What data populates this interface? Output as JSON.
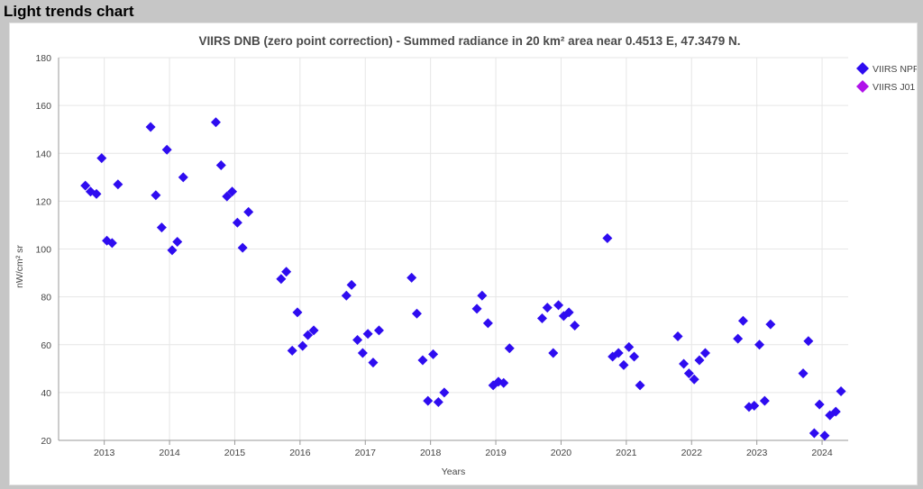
{
  "window": {
    "title": "Light trends chart"
  },
  "colors": {
    "npp": "#2e0cf0",
    "j01": "#b012ea",
    "grid": "#e6e6e6",
    "axis": "#999999"
  },
  "chart_data": {
    "type": "scatter",
    "title": "VIIRS DNB (zero point correction) - Summed radiance in 20 km² area near 0.4513 E, 47.3479 N.",
    "xlabel": "Years",
    "ylabel": "nW/cm² sr",
    "ylim": [
      20,
      180
    ],
    "yticks": [
      20,
      40,
      60,
      80,
      100,
      120,
      140,
      160,
      180
    ],
    "xlim": [
      2012.3,
      2024.4
    ],
    "xticks": [
      "2013",
      "2014",
      "2015",
      "2016",
      "2017",
      "2018",
      "2019",
      "2020",
      "2021",
      "2022",
      "2023",
      "2024"
    ],
    "grid": true,
    "legend_position": "top-right",
    "series": [
      {
        "name": "VIIRS NPP",
        "color": "#2e0cf0",
        "marker": "diamond",
        "points": [
          {
            "x": 2012.71,
            "y": 126.5
          },
          {
            "x": 2012.79,
            "y": 124
          },
          {
            "x": 2012.88,
            "y": 123
          },
          {
            "x": 2012.96,
            "y": 138
          },
          {
            "x": 2013.04,
            "y": 103.5
          },
          {
            "x": 2013.12,
            "y": 102.5
          },
          {
            "x": 2013.21,
            "y": 127
          },
          {
            "x": 2013.71,
            "y": 151
          },
          {
            "x": 2013.79,
            "y": 122.5
          },
          {
            "x": 2013.88,
            "y": 109
          },
          {
            "x": 2013.96,
            "y": 141.5
          },
          {
            "x": 2014.04,
            "y": 99.5
          },
          {
            "x": 2014.12,
            "y": 103
          },
          {
            "x": 2014.21,
            "y": 130
          },
          {
            "x": 2014.71,
            "y": 153
          },
          {
            "x": 2014.79,
            "y": 135
          },
          {
            "x": 2014.88,
            "y": 122
          },
          {
            "x": 2014.96,
            "y": 124
          },
          {
            "x": 2015.04,
            "y": 111
          },
          {
            "x": 2015.12,
            "y": 100.5
          },
          {
            "x": 2015.21,
            "y": 115.5
          },
          {
            "x": 2015.71,
            "y": 87.5
          },
          {
            "x": 2015.79,
            "y": 90.5
          },
          {
            "x": 2015.88,
            "y": 57.5
          },
          {
            "x": 2015.96,
            "y": 73.5
          },
          {
            "x": 2016.04,
            "y": 59.5
          },
          {
            "x": 2016.12,
            "y": 64
          },
          {
            "x": 2016.21,
            "y": 66
          },
          {
            "x": 2016.71,
            "y": 80.5
          },
          {
            "x": 2016.79,
            "y": 85
          },
          {
            "x": 2016.88,
            "y": 62
          },
          {
            "x": 2016.96,
            "y": 56.5
          },
          {
            "x": 2017.04,
            "y": 64.5
          },
          {
            "x": 2017.12,
            "y": 52.5
          },
          {
            "x": 2017.21,
            "y": 66
          },
          {
            "x": 2017.71,
            "y": 88
          },
          {
            "x": 2017.79,
            "y": 73
          },
          {
            "x": 2017.88,
            "y": 53.5
          },
          {
            "x": 2017.96,
            "y": 36.5
          },
          {
            "x": 2018.04,
            "y": 56
          },
          {
            "x": 2018.12,
            "y": 36
          },
          {
            "x": 2018.21,
            "y": 40
          },
          {
            "x": 2018.71,
            "y": 75
          },
          {
            "x": 2018.79,
            "y": 80.5
          },
          {
            "x": 2018.88,
            "y": 69
          },
          {
            "x": 2018.96,
            "y": 43
          },
          {
            "x": 2019.04,
            "y": 44.5
          },
          {
            "x": 2019.12,
            "y": 44
          },
          {
            "x": 2019.21,
            "y": 58.5
          },
          {
            "x": 2019.71,
            "y": 71
          },
          {
            "x": 2019.79,
            "y": 75.5
          },
          {
            "x": 2019.88,
            "y": 56.5
          },
          {
            "x": 2019.96,
            "y": 76.5
          },
          {
            "x": 2020.04,
            "y": 72
          },
          {
            "x": 2020.12,
            "y": 73.5
          },
          {
            "x": 2020.21,
            "y": 68
          },
          {
            "x": 2020.71,
            "y": 104.5
          },
          {
            "x": 2020.79,
            "y": 55
          },
          {
            "x": 2020.88,
            "y": 56.5
          },
          {
            "x": 2020.96,
            "y": 51.5
          },
          {
            "x": 2021.04,
            "y": 59
          },
          {
            "x": 2021.12,
            "y": 55
          },
          {
            "x": 2021.21,
            "y": 43
          },
          {
            "x": 2021.79,
            "y": 63.5
          },
          {
            "x": 2021.88,
            "y": 52
          },
          {
            "x": 2021.96,
            "y": 48
          },
          {
            "x": 2022.04,
            "y": 45.5
          },
          {
            "x": 2022.12,
            "y": 53.5
          },
          {
            "x": 2022.21,
            "y": 56.5
          },
          {
            "x": 2022.71,
            "y": 62.5
          },
          {
            "x": 2022.79,
            "y": 70
          },
          {
            "x": 2022.88,
            "y": 34
          },
          {
            "x": 2022.96,
            "y": 34.5
          },
          {
            "x": 2023.04,
            "y": 60
          },
          {
            "x": 2023.12,
            "y": 36.5
          },
          {
            "x": 2023.21,
            "y": 68.5
          },
          {
            "x": 2023.71,
            "y": 48
          },
          {
            "x": 2023.79,
            "y": 61.5
          },
          {
            "x": 2023.88,
            "y": 23
          },
          {
            "x": 2023.96,
            "y": 35
          },
          {
            "x": 2024.04,
            "y": 22
          },
          {
            "x": 2024.12,
            "y": 30.5
          },
          {
            "x": 2024.21,
            "y": 32
          },
          {
            "x": 2024.29,
            "y": 40.5
          }
        ]
      },
      {
        "name": "VIIRS J01",
        "color": "#b012ea",
        "marker": "diamond",
        "points": []
      }
    ]
  }
}
